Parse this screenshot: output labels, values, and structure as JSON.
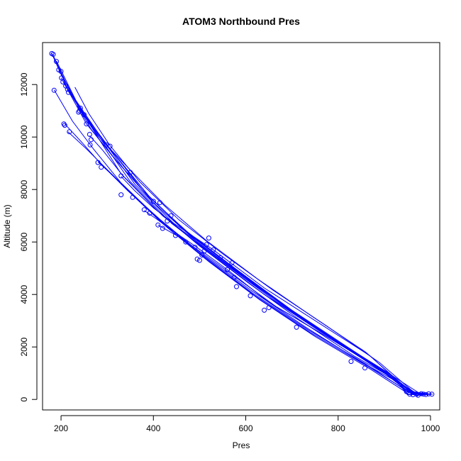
{
  "chart_data": {
    "type": "scatter",
    "title": "ATOM3 Northbound Pres",
    "xlabel": "Pres",
    "ylabel": "Altitude (m)",
    "xlim": [
      160,
      1020
    ],
    "ylim": [
      -400,
      13600
    ],
    "xticks": [
      200,
      400,
      600,
      800,
      1000
    ],
    "yticks": [
      0,
      2000,
      4000,
      6000,
      8000,
      10000,
      12000
    ],
    "grid": false,
    "legend": "none",
    "style": "line segments connecting open circle points",
    "color": "#0000ff",
    "series": [
      {
        "points": [
          [
            180,
            13180
          ],
          [
            215,
            11800
          ],
          [
            265,
            10400
          ],
          [
            330,
            8600
          ],
          [
            420,
            7000
          ],
          [
            520,
            5600
          ],
          [
            640,
            4000
          ],
          [
            760,
            2600
          ],
          [
            880,
            1300
          ],
          [
            960,
            300
          ],
          [
            1000,
            200
          ]
        ]
      },
      {
        "points": [
          [
            182,
            13150
          ],
          [
            220,
            11700
          ],
          [
            275,
            10200
          ],
          [
            350,
            8300
          ],
          [
            440,
            6700
          ],
          [
            545,
            5300
          ],
          [
            660,
            3800
          ],
          [
            780,
            2400
          ],
          [
            900,
            1100
          ],
          [
            975,
            250
          ],
          [
            995,
            180
          ]
        ]
      },
      {
        "points": [
          [
            190,
            12900
          ],
          [
            232,
            11400
          ],
          [
            290,
            9900
          ],
          [
            360,
            8200
          ],
          [
            450,
            6600
          ],
          [
            560,
            5150
          ],
          [
            680,
            3600
          ],
          [
            800,
            2200
          ],
          [
            910,
            1000
          ],
          [
            965,
            200
          ],
          [
            990,
            190
          ]
        ]
      },
      {
        "points": [
          [
            195,
            12600
          ],
          [
            240,
            11100
          ],
          [
            300,
            9700
          ],
          [
            375,
            8000
          ],
          [
            470,
            6400
          ],
          [
            580,
            4950
          ],
          [
            700,
            3400
          ],
          [
            820,
            2000
          ],
          [
            920,
            850
          ],
          [
            970,
            150
          ],
          [
            1000,
            210
          ]
        ]
      },
      {
        "points": [
          [
            200,
            12250
          ],
          [
            250,
            10800
          ],
          [
            310,
            9450
          ],
          [
            390,
            7750
          ],
          [
            480,
            6250
          ],
          [
            590,
            4800
          ],
          [
            710,
            3250
          ],
          [
            830,
            1850
          ],
          [
            925,
            750
          ],
          [
            950,
            180
          ],
          [
            985,
            200
          ]
        ]
      },
      {
        "points": [
          [
            205,
            12100
          ],
          [
            255,
            10500
          ],
          [
            320,
            9100
          ],
          [
            400,
            7500
          ],
          [
            495,
            6000
          ],
          [
            600,
            4600
          ],
          [
            720,
            3100
          ],
          [
            840,
            1700
          ],
          [
            930,
            650
          ],
          [
            975,
            180
          ],
          [
            1005,
            200
          ]
        ]
      },
      {
        "points": [
          [
            185,
            11800
          ],
          [
            225,
            10600
          ],
          [
            270,
            9550
          ],
          [
            330,
            8250
          ],
          [
            410,
            6900
          ],
          [
            505,
            5500
          ],
          [
            615,
            4050
          ],
          [
            735,
            2650
          ],
          [
            860,
            1350
          ],
          [
            955,
            250
          ],
          [
            990,
            200
          ]
        ]
      },
      {
        "points": [
          [
            208,
            10500
          ],
          [
            245,
            9800
          ],
          [
            285,
            9000
          ],
          [
            345,
            7950
          ],
          [
            420,
            6700
          ],
          [
            510,
            5400
          ],
          [
            620,
            3950
          ],
          [
            740,
            2550
          ],
          [
            865,
            1250
          ],
          [
            960,
            220
          ],
          [
            995,
            210
          ]
        ]
      },
      {
        "points": [
          [
            215,
            10200
          ],
          [
            252,
            9600
          ],
          [
            295,
            8850
          ],
          [
            355,
            7800
          ],
          [
            430,
            6550
          ],
          [
            520,
            5250
          ],
          [
            630,
            3800
          ],
          [
            750,
            2400
          ],
          [
            870,
            1150
          ],
          [
            945,
            300
          ],
          [
            980,
            170
          ]
        ]
      },
      {
        "points": [
          [
            230,
            11900
          ],
          [
            260,
            10900
          ],
          [
            305,
            9700
          ],
          [
            370,
            8300
          ],
          [
            455,
            6850
          ],
          [
            550,
            5550
          ],
          [
            660,
            4150
          ],
          [
            775,
            2800
          ],
          [
            890,
            1400
          ],
          [
            965,
            260
          ],
          [
            1000,
            200
          ]
        ]
      },
      {
        "points": [
          [
            235,
            11200
          ],
          [
            265,
            10300
          ],
          [
            310,
            9300
          ],
          [
            380,
            7900
          ],
          [
            465,
            6500
          ],
          [
            565,
            5150
          ],
          [
            675,
            3700
          ],
          [
            790,
            2300
          ],
          [
            900,
            1050
          ],
          [
            970,
            200
          ],
          [
            985,
            190
          ]
        ]
      },
      {
        "points": [
          [
            243,
            11050
          ],
          [
            275,
            10150
          ],
          [
            325,
            9150
          ],
          [
            395,
            7650
          ],
          [
            485,
            6200
          ],
          [
            585,
            4850
          ],
          [
            695,
            3450
          ],
          [
            810,
            2050
          ],
          [
            915,
            850
          ],
          [
            960,
            250
          ],
          [
            975,
            180
          ]
        ]
      },
      {
        "points": [
          [
            262,
            10050
          ],
          [
            290,
            9500
          ],
          [
            335,
            8500
          ],
          [
            405,
            7250
          ],
          [
            500,
            5850
          ],
          [
            605,
            4450
          ],
          [
            715,
            3050
          ],
          [
            835,
            1650
          ],
          [
            930,
            700
          ],
          [
            955,
            300
          ],
          [
            990,
            210
          ]
        ]
      },
      {
        "points": [
          [
            280,
            9050
          ],
          [
            305,
            8650
          ],
          [
            345,
            7950
          ],
          [
            415,
            6850
          ],
          [
            508,
            5500
          ],
          [
            612,
            4150
          ],
          [
            730,
            2750
          ],
          [
            848,
            1450
          ],
          [
            935,
            600
          ],
          [
            950,
            200
          ],
          [
            980,
            190
          ]
        ]
      },
      {
        "points": [
          [
            298,
            9700
          ],
          [
            320,
            9300
          ],
          [
            355,
            8650
          ],
          [
            425,
            7400
          ],
          [
            515,
            6050
          ],
          [
            625,
            4600
          ],
          [
            745,
            3150
          ],
          [
            860,
            1800
          ],
          [
            940,
            550
          ],
          [
            968,
            230
          ],
          [
            1000,
            200
          ]
        ]
      },
      {
        "points": [
          [
            330,
            8500
          ],
          [
            360,
            7950
          ],
          [
            400,
            7300
          ],
          [
            445,
            6700
          ],
          [
            530,
            5700
          ],
          [
            640,
            4250
          ],
          [
            755,
            2950
          ],
          [
            870,
            1650
          ],
          [
            942,
            480
          ],
          [
            972,
            200
          ],
          [
            995,
            190
          ]
        ]
      },
      {
        "points": [
          [
            380,
            7200
          ],
          [
            405,
            6900
          ],
          [
            440,
            6450
          ],
          [
            490,
            5850
          ],
          [
            560,
            4950
          ],
          [
            650,
            3700
          ],
          [
            765,
            2500
          ],
          [
            880,
            1300
          ],
          [
            945,
            400
          ],
          [
            962,
            180
          ],
          [
            985,
            200
          ]
        ]
      },
      {
        "points": [
          [
            410,
            6650
          ],
          [
            430,
            6450
          ],
          [
            460,
            6150
          ],
          [
            500,
            5650
          ],
          [
            575,
            4700
          ],
          [
            665,
            3550
          ],
          [
            780,
            2350
          ],
          [
            890,
            1150
          ],
          [
            948,
            350
          ],
          [
            970,
            200
          ],
          [
            990,
            210
          ]
        ]
      }
    ],
    "marker_points": [
      [
        180,
        13180
      ],
      [
        183,
        13150
      ],
      [
        190,
        12880
      ],
      [
        195,
        12560
      ],
      [
        200,
        12500
      ],
      [
        201,
        12250
      ],
      [
        204,
        12100
      ],
      [
        210,
        11950
      ],
      [
        185,
        11780
      ],
      [
        214,
        11820
      ],
      [
        216,
        11700
      ],
      [
        240,
        11000
      ],
      [
        242,
        11100
      ],
      [
        238,
        10950
      ],
      [
        250,
        10850
      ],
      [
        255,
        10500
      ],
      [
        262,
        10100
      ],
      [
        265,
        9900
      ],
      [
        263,
        9700
      ],
      [
        206,
        10500
      ],
      [
        208,
        10450
      ],
      [
        218,
        10200
      ],
      [
        280,
        9030
      ],
      [
        287,
        8850
      ],
      [
        298,
        9700
      ],
      [
        306,
        9650
      ],
      [
        330,
        8520
      ],
      [
        350,
        8650
      ],
      [
        330,
        7800
      ],
      [
        355,
        7700
      ],
      [
        380,
        7230
      ],
      [
        392,
        7100
      ],
      [
        400,
        7550
      ],
      [
        410,
        6650
      ],
      [
        414,
        7500
      ],
      [
        420,
        6520
      ],
      [
        430,
        6800
      ],
      [
        438,
        7000
      ],
      [
        448,
        6250
      ],
      [
        470,
        6000
      ],
      [
        490,
        5800
      ],
      [
        495,
        5350
      ],
      [
        500,
        5300
      ],
      [
        505,
        5500
      ],
      [
        510,
        5650
      ],
      [
        515,
        5900
      ],
      [
        520,
        6150
      ],
      [
        530,
        5700
      ],
      [
        545,
        5400
      ],
      [
        560,
        4950
      ],
      [
        570,
        5200
      ],
      [
        575,
        4650
      ],
      [
        580,
        4300
      ],
      [
        610,
        3950
      ],
      [
        640,
        3400
      ],
      [
        650,
        3500
      ],
      [
        710,
        2750
      ],
      [
        828,
        1450
      ],
      [
        858,
        1200
      ],
      [
        948,
        300
      ],
      [
        955,
        200
      ],
      [
        962,
        180
      ],
      [
        970,
        200
      ],
      [
        973,
        160
      ],
      [
        980,
        220
      ],
      [
        985,
        200
      ],
      [
        990,
        190
      ],
      [
        996,
        210
      ],
      [
        1003,
        200
      ]
    ]
  }
}
